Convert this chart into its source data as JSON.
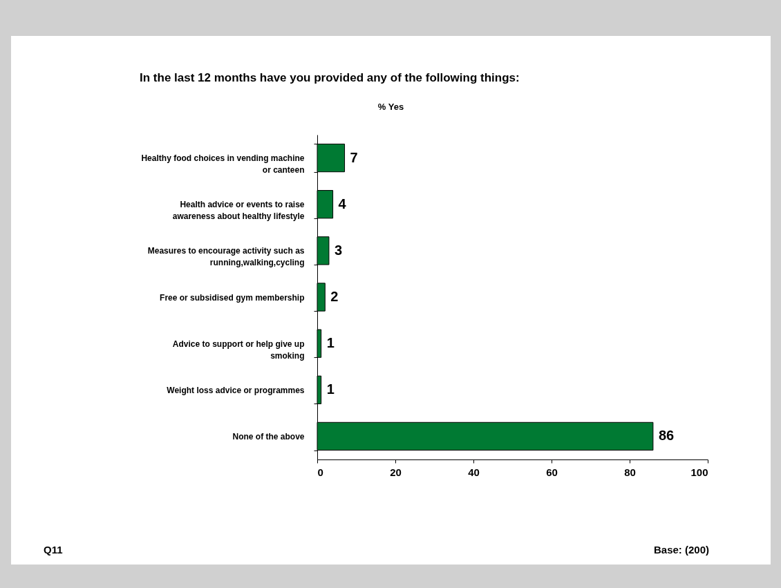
{
  "chart_data": {
    "type": "bar",
    "orientation": "horizontal",
    "title": "In the last 12 months have you provided any of the following things:",
    "subtitle": "% Yes",
    "categories": [
      "Healthy food choices in vending machine or canteen",
      "Health advice or events to raise awareness about healthy lifestyle",
      "Measures to encourage activity such as running,walking,cycling",
      "Free or subsidised gym membership",
      "Advice to support or help give up smoking",
      "Weight loss advice or programmes",
      "None of the above"
    ],
    "values": [
      7,
      4,
      3,
      2,
      1,
      1,
      86
    ],
    "color": "#007a33",
    "xlim": [
      0,
      100
    ],
    "xticks": [
      0,
      20,
      40,
      60,
      80,
      100
    ],
    "data_labels": true,
    "annotations": [
      "Q11",
      "Base: (200)"
    ]
  }
}
